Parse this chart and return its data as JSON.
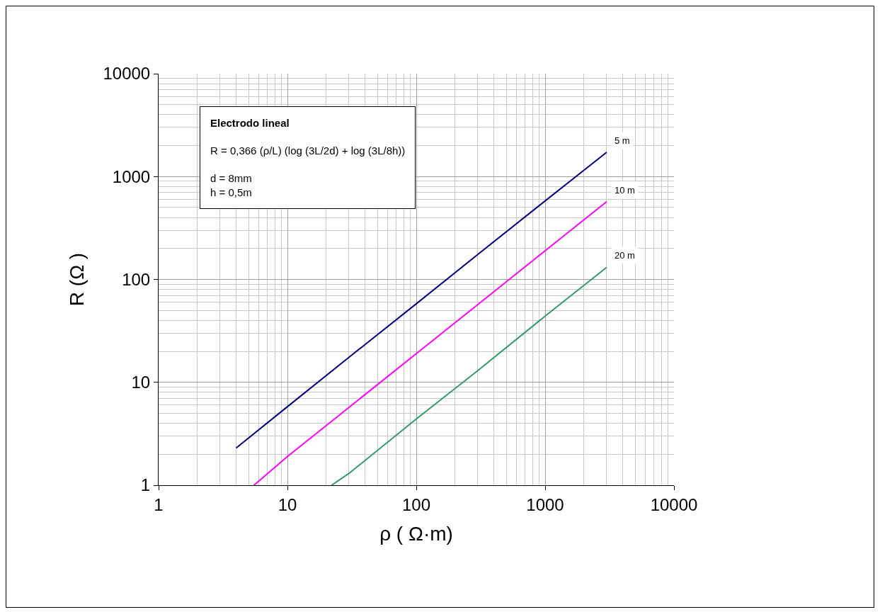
{
  "chart_data": {
    "type": "line",
    "xlabel": "ρ ( Ω·m)",
    "ylabel": "R (Ω )",
    "annotations": [
      "Electrodo lineal",
      "R = 0,366 (ρ/L) (log (3L/2d) + log (3L/8h))",
      "d = 8mm",
      "h = 0,5m"
    ],
    "log": "xy",
    "grid": true,
    "legend": false,
    "marker": "none",
    "line_style": "solid",
    "xlim": [
      1,
      10000
    ],
    "xticks": [
      1,
      10,
      100,
      1000,
      10000
    ],
    "ylim": [
      1,
      10000
    ],
    "yticks": [
      1,
      10,
      100,
      1000,
      10000
    ],
    "series": [
      {
        "name": "5 m",
        "color": "#000080",
        "x": [
          4,
          10,
          30,
          100,
          300,
          1000,
          3000
        ],
        "values": [
          2.3,
          5.8,
          17.5,
          58,
          175,
          580,
          1720
        ]
      },
      {
        "name": "10 m",
        "color": "#ff00ff",
        "x": [
          5.5,
          10,
          30,
          100,
          300,
          1000,
          3000
        ],
        "values": [
          1,
          1.9,
          5.7,
          19,
          57,
          190,
          570
        ]
      },
      {
        "name": "20 m",
        "color": "#339966",
        "x": [
          22,
          30,
          100,
          300,
          1000,
          3000
        ],
        "values": [
          1,
          1.3,
          4.4,
          13,
          44,
          131
        ]
      }
    ]
  }
}
